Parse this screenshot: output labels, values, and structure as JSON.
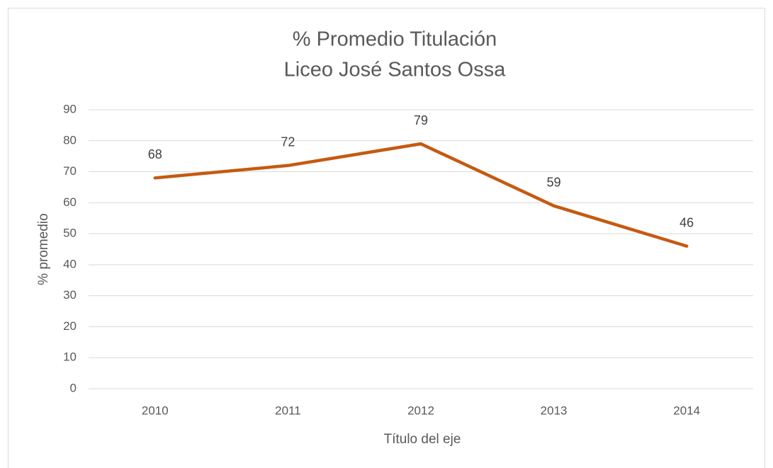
{
  "chart_data": {
    "type": "line",
    "title": [
      "% Promedio Titulación",
      "Liceo José Santos Ossa"
    ],
    "x_label": "Título del eje",
    "y_label": "% promedio",
    "categories": [
      "2010",
      "2011",
      "2012",
      "2013",
      "2014"
    ],
    "series": [
      {
        "name": "% promedio",
        "color": "#c55a11",
        "values": [
          68,
          72,
          79,
          59,
          46
        ]
      }
    ],
    "ylim": [
      0,
      90
    ],
    "yticks": [
      0,
      10,
      20,
      30,
      40,
      50,
      60,
      70,
      80,
      90
    ],
    "grid": true
  }
}
